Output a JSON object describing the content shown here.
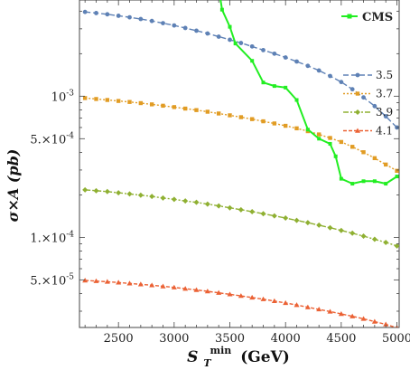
{
  "chart_data": {
    "type": "line",
    "xlabel": "S_T^min (GeV)",
    "xlabel_parts": {
      "main": "S",
      "sub": "T",
      "sup": "min",
      "unit": "(GeV)"
    },
    "ylabel": "σ×A (pb)",
    "xlim": [
      2150,
      5020
    ],
    "ylim": [
      2.3e-05,
      0.0048
    ],
    "yscale": "log",
    "xticks": [
      2500,
      3000,
      3500,
      4000,
      4500,
      5000
    ],
    "yticks": [
      {
        "value": 0.001,
        "label": "10^-3",
        "mant": "10",
        "exp": "-3"
      },
      {
        "value": 0.0005,
        "label": "5.×10^-4",
        "mant": "5.×10",
        "exp": "-4"
      },
      {
        "value": 0.0001,
        "label": "1.×10^-4",
        "mant": "1.×10",
        "exp": "-4"
      },
      {
        "value": 5e-05,
        "label": "5.×10^-5",
        "mant": "5.×10",
        "exp": "-5"
      }
    ],
    "legend_position": "top-right",
    "x": [
      2200,
      2300,
      2400,
      2500,
      2600,
      2700,
      2800,
      2900,
      3000,
      3100,
      3200,
      3300,
      3400,
      3500,
      3600,
      3700,
      3800,
      3900,
      4000,
      4100,
      4200,
      4300,
      4400,
      4500,
      4600,
      4700,
      4800,
      4900,
      5000
    ],
    "series": [
      {
        "name": "3.5",
        "color": "#5e81b5",
        "marker": "circle",
        "dash": "6,3",
        "values": [
          0.00395,
          0.00388,
          0.0038,
          0.00371,
          0.00362,
          0.00352,
          0.00341,
          0.00329,
          0.00317,
          0.00304,
          0.00291,
          0.00278,
          0.00264,
          0.00251,
          0.00238,
          0.00225,
          0.00212,
          0.002,
          0.00188,
          0.00176,
          0.00164,
          0.00152,
          0.00139,
          0.00126,
          0.00112,
          0.00098,
          0.00085,
          0.00072,
          0.0006
        ]
      },
      {
        "name": "3.7",
        "color": "#e19c24",
        "marker": "square",
        "dash": "2,2",
        "values": [
          0.00097,
          0.000955,
          0.00094,
          0.000925,
          0.00091,
          0.000893,
          0.000875,
          0.000856,
          0.000837,
          0.000817,
          0.000797,
          0.000776,
          0.000754,
          0.000732,
          0.00071,
          0.000688,
          0.000664,
          0.000641,
          0.000617,
          0.000592,
          0.000565,
          0.000536,
          0.000506,
          0.000474,
          0.000438,
          0.000401,
          0.000364,
          0.000328,
          0.000296
        ]
      },
      {
        "name": "3.9",
        "color": "#8fb032",
        "marker": "diamond",
        "dash": "6,2,2,2",
        "values": [
          0.000217,
          0.000214,
          0.000211,
          0.000207,
          0.000203,
          0.000199,
          0.000195,
          0.00019,
          0.000186,
          0.000181,
          0.000177,
          0.000172,
          0.000167,
          0.000162,
          0.000157,
          0.000152,
          0.000147,
          0.000142,
          0.000137,
          0.000132,
          0.000127,
          0.000122,
          0.000117,
          0.000112,
          0.000107,
          0.000102,
          9.7e-05,
          9.2e-05,
          8.7e-05
        ]
      },
      {
        "name": "4.1",
        "color": "#eb6235",
        "marker": "triangle",
        "dash": "4,2",
        "values": [
          4.95e-05,
          4.9e-05,
          4.85e-05,
          4.79e-05,
          4.72e-05,
          4.65e-05,
          4.58e-05,
          4.5e-05,
          4.42e-05,
          4.33e-05,
          4.24e-05,
          4.15e-05,
          4.05e-05,
          3.95e-05,
          3.85e-05,
          3.75e-05,
          3.65e-05,
          3.54e-05,
          3.43e-05,
          3.32e-05,
          3.2e-05,
          3.09e-05,
          2.98e-05,
          2.87e-05,
          2.76e-05,
          2.65e-05,
          2.53e-05,
          2.42e-05,
          2.29e-05
        ]
      },
      {
        "name": "CMS",
        "color": "#22ee22",
        "marker": "square",
        "dash": "",
        "x": [
          3410,
          3430,
          3500,
          3550,
          3700,
          3800,
          3900,
          4000,
          4100,
          4200,
          4300,
          4400,
          4450,
          4500,
          4600,
          4700,
          4800,
          4900,
          5000
        ],
        "values": [
          0.0052,
          0.0041,
          0.0031,
          0.00236,
          0.00178,
          0.00125,
          0.00118,
          0.00115,
          0.00094,
          0.00058,
          0.0005,
          0.00046,
          0.000375,
          0.00026,
          0.00024,
          0.00025,
          0.00025,
          0.00024,
          0.00027
        ]
      }
    ]
  }
}
